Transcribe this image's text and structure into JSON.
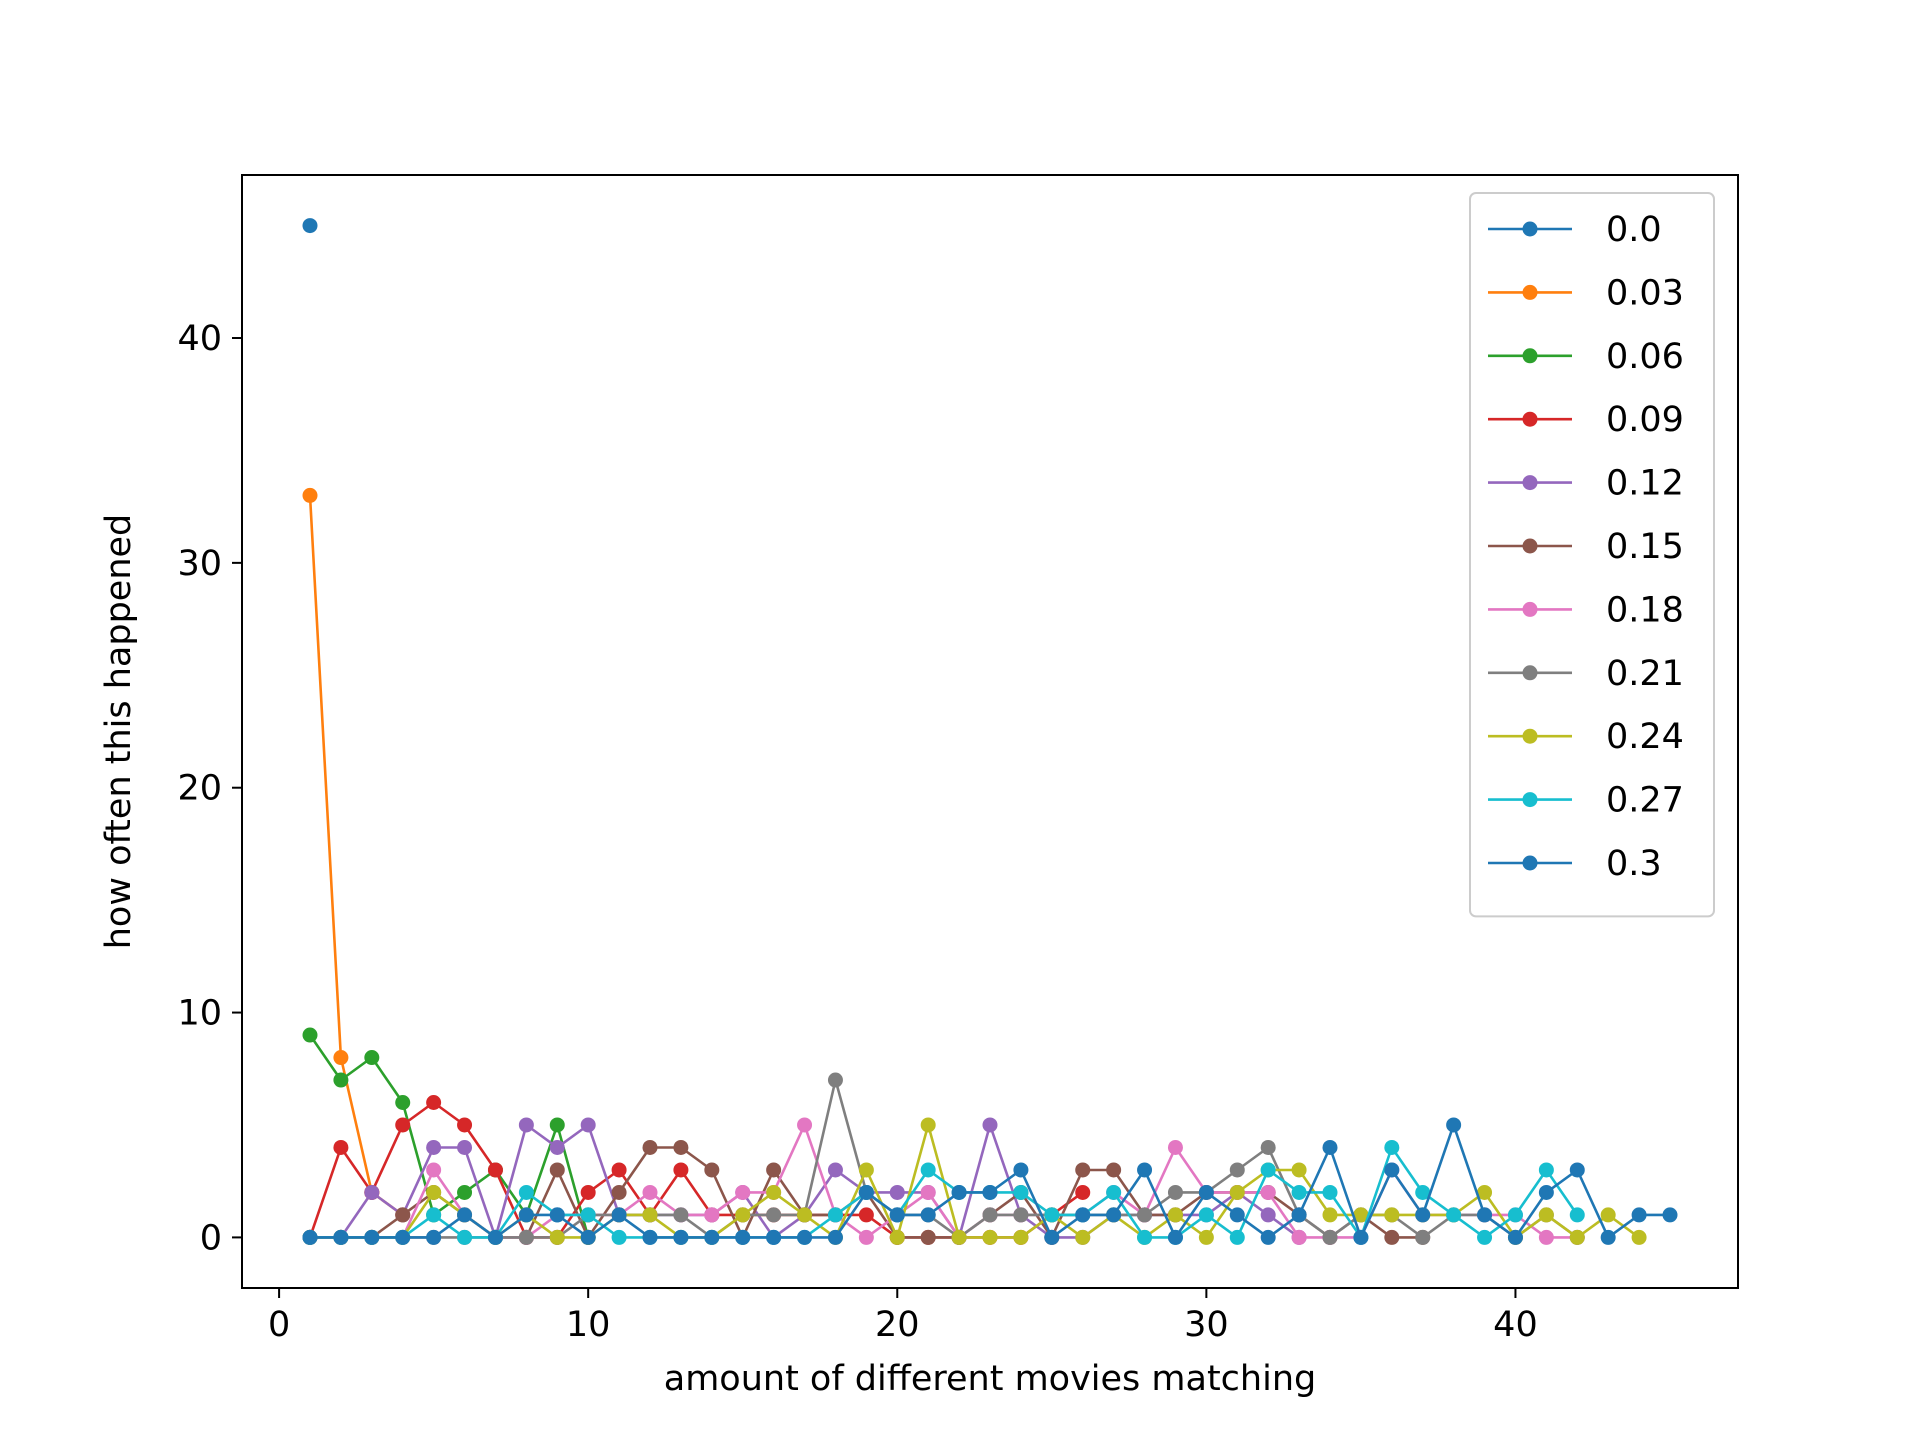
{
  "chart_data": {
    "type": "line",
    "title": "",
    "xlabel": "amount of different movies matching",
    "ylabel": "how often this happened",
    "xlim": [
      -1.2,
      47.2
    ],
    "ylim": [
      -2.25,
      47.25
    ],
    "xticks": [
      0,
      10,
      20,
      30,
      40
    ],
    "yticks": [
      0,
      10,
      20,
      30,
      40
    ],
    "grid": false,
    "legend_position": "top-right",
    "series": [
      {
        "name": "0.0",
        "color": "#1f77b4",
        "x": [
          1
        ],
        "y": [
          45
        ]
      },
      {
        "name": "0.03",
        "color": "#ff7f0e",
        "x": [
          1,
          2,
          3,
          4
        ],
        "y": [
          33,
          8,
          2,
          1
        ]
      },
      {
        "name": "0.06",
        "color": "#2ca02c",
        "x": [
          1,
          2,
          3,
          4,
          5,
          6,
          7,
          8,
          9,
          10
        ],
        "y": [
          9,
          7,
          8,
          6,
          1,
          2,
          3,
          1,
          5,
          0
        ]
      },
      {
        "name": "0.09",
        "color": "#d62728",
        "x": [
          1,
          2,
          3,
          4,
          5,
          6,
          7,
          8,
          9,
          10,
          11,
          12,
          13,
          14,
          15,
          16,
          17,
          18,
          19,
          20,
          21,
          22,
          23,
          24,
          25,
          26
        ],
        "y": [
          0,
          4,
          2,
          5,
          6,
          5,
          3,
          0,
          0,
          2,
          3,
          1,
          3,
          1,
          1,
          1,
          1,
          1,
          1,
          0,
          0,
          0,
          0,
          0,
          1,
          2
        ]
      },
      {
        "name": "0.12",
        "color": "#9467bd",
        "x": [
          1,
          2,
          3,
          4,
          5,
          6,
          7,
          8,
          9,
          10,
          11,
          12,
          13,
          14,
          15,
          16,
          17,
          18,
          19,
          20,
          21,
          22,
          23,
          24,
          25,
          26,
          27,
          28,
          29,
          30,
          31,
          32,
          33
        ],
        "y": [
          0,
          0,
          2,
          1,
          4,
          4,
          0,
          5,
          4,
          5,
          1,
          1,
          1,
          1,
          2,
          0,
          1,
          3,
          2,
          2,
          2,
          0,
          5,
          1,
          0,
          0,
          1,
          1,
          1,
          1,
          2,
          1,
          0
        ]
      },
      {
        "name": "0.15",
        "color": "#8c564b",
        "x": [
          1,
          2,
          3,
          4,
          5,
          6,
          7,
          8,
          9,
          10,
          11,
          12,
          13,
          14,
          15,
          16,
          17,
          18,
          19,
          20,
          21,
          22,
          23,
          24,
          25,
          26,
          27,
          28,
          29,
          30,
          31,
          32,
          33,
          34,
          35,
          36,
          37
        ],
        "y": [
          0,
          0,
          0,
          1,
          2,
          1,
          0,
          0,
          3,
          0,
          2,
          4,
          4,
          3,
          0,
          3,
          1,
          1,
          2,
          0,
          0,
          0,
          1,
          2,
          0,
          3,
          3,
          1,
          1,
          2,
          2,
          2,
          1,
          0,
          1,
          0,
          0
        ]
      },
      {
        "name": "0.18",
        "color": "#e377c2",
        "x": [
          1,
          2,
          3,
          4,
          5,
          6,
          7,
          8,
          9,
          10,
          11,
          12,
          13,
          14,
          15,
          16,
          17,
          18,
          19,
          20,
          21,
          22,
          23,
          24,
          25,
          26,
          27,
          28,
          29,
          30,
          31,
          32,
          33,
          34,
          35,
          36,
          37,
          38,
          39,
          40,
          41,
          42
        ],
        "y": [
          0,
          0,
          0,
          0,
          3,
          1,
          0,
          0,
          1,
          1,
          1,
          2,
          1,
          1,
          2,
          2,
          5,
          1,
          0,
          1,
          2,
          0,
          1,
          1,
          1,
          1,
          2,
          1,
          4,
          2,
          2,
          2,
          0,
          0,
          0,
          3,
          1,
          1,
          1,
          1,
          0,
          0
        ]
      },
      {
        "name": "0.21",
        "color": "#7f7f7f",
        "x": [
          1,
          2,
          3,
          4,
          5,
          6,
          7,
          8,
          9,
          10,
          11,
          12,
          13,
          14,
          15,
          16,
          17,
          18,
          19,
          20,
          21,
          22,
          23,
          24,
          25,
          26,
          27,
          28,
          29,
          30,
          31,
          32,
          33,
          34,
          35,
          36,
          37,
          38,
          39,
          40,
          41,
          42
        ],
        "y": [
          0,
          0,
          0,
          0,
          0,
          0,
          0,
          0,
          0,
          1,
          1,
          1,
          1,
          0,
          1,
          1,
          1,
          7,
          2,
          1,
          1,
          0,
          1,
          1,
          1,
          1,
          1,
          1,
          2,
          2,
          3,
          4,
          1,
          0,
          1,
          1,
          0,
          1,
          1,
          0,
          1,
          0
        ]
      },
      {
        "name": "0.24",
        "color": "#bcbd22",
        "x": [
          1,
          2,
          3,
          4,
          5,
          6,
          7,
          8,
          9,
          10,
          11,
          12,
          13,
          14,
          15,
          16,
          17,
          18,
          19,
          20,
          21,
          22,
          23,
          24,
          25,
          26,
          27,
          28,
          29,
          30,
          31,
          32,
          33,
          34,
          35,
          36,
          37,
          38,
          39,
          40,
          41,
          42,
          43,
          44
        ],
        "y": [
          0,
          0,
          0,
          0,
          2,
          1,
          0,
          1,
          0,
          0,
          1,
          1,
          0,
          0,
          1,
          2,
          1,
          0,
          3,
          0,
          5,
          0,
          0,
          0,
          1,
          0,
          1,
          0,
          1,
          0,
          2,
          3,
          3,
          1,
          1,
          1,
          1,
          1,
          2,
          0,
          1,
          0,
          1,
          0
        ]
      },
      {
        "name": "0.27",
        "color": "#17becf",
        "x": [
          1,
          2,
          3,
          4,
          5,
          6,
          7,
          8,
          9,
          10,
          11,
          12,
          13,
          14,
          15,
          16,
          17,
          18,
          19,
          20,
          21,
          22,
          23,
          24,
          25,
          26,
          27,
          28,
          29,
          30,
          31,
          32,
          33,
          34,
          35,
          36,
          37,
          38,
          39,
          40,
          41,
          42
        ],
        "y": [
          0,
          0,
          0,
          0,
          1,
          0,
          0,
          2,
          1,
          1,
          0,
          0,
          0,
          0,
          0,
          0,
          0,
          1,
          2,
          1,
          3,
          2,
          2,
          2,
          1,
          1,
          2,
          0,
          0,
          1,
          0,
          3,
          2,
          2,
          0,
          4,
          2,
          1,
          0,
          1,
          3,
          1
        ]
      },
      {
        "name": "0.3",
        "color": "#1f77b4",
        "x": [
          1,
          2,
          3,
          4,
          5,
          6,
          7,
          8,
          9,
          10,
          11,
          12,
          13,
          14,
          15,
          16,
          17,
          18,
          19,
          20,
          21,
          22,
          23,
          24,
          25,
          26,
          27,
          28,
          29,
          30,
          31,
          32,
          33,
          34,
          35,
          36,
          37,
          38,
          39,
          40,
          41,
          42,
          43,
          44,
          45
        ],
        "y": [
          0,
          0,
          0,
          0,
          0,
          1,
          0,
          1,
          1,
          0,
          1,
          0,
          0,
          0,
          0,
          0,
          0,
          0,
          2,
          1,
          1,
          2,
          2,
          3,
          0,
          1,
          1,
          3,
          0,
          2,
          1,
          0,
          1,
          4,
          0,
          3,
          1,
          5,
          1,
          0,
          2,
          3,
          0,
          1,
          1
        ]
      }
    ]
  }
}
